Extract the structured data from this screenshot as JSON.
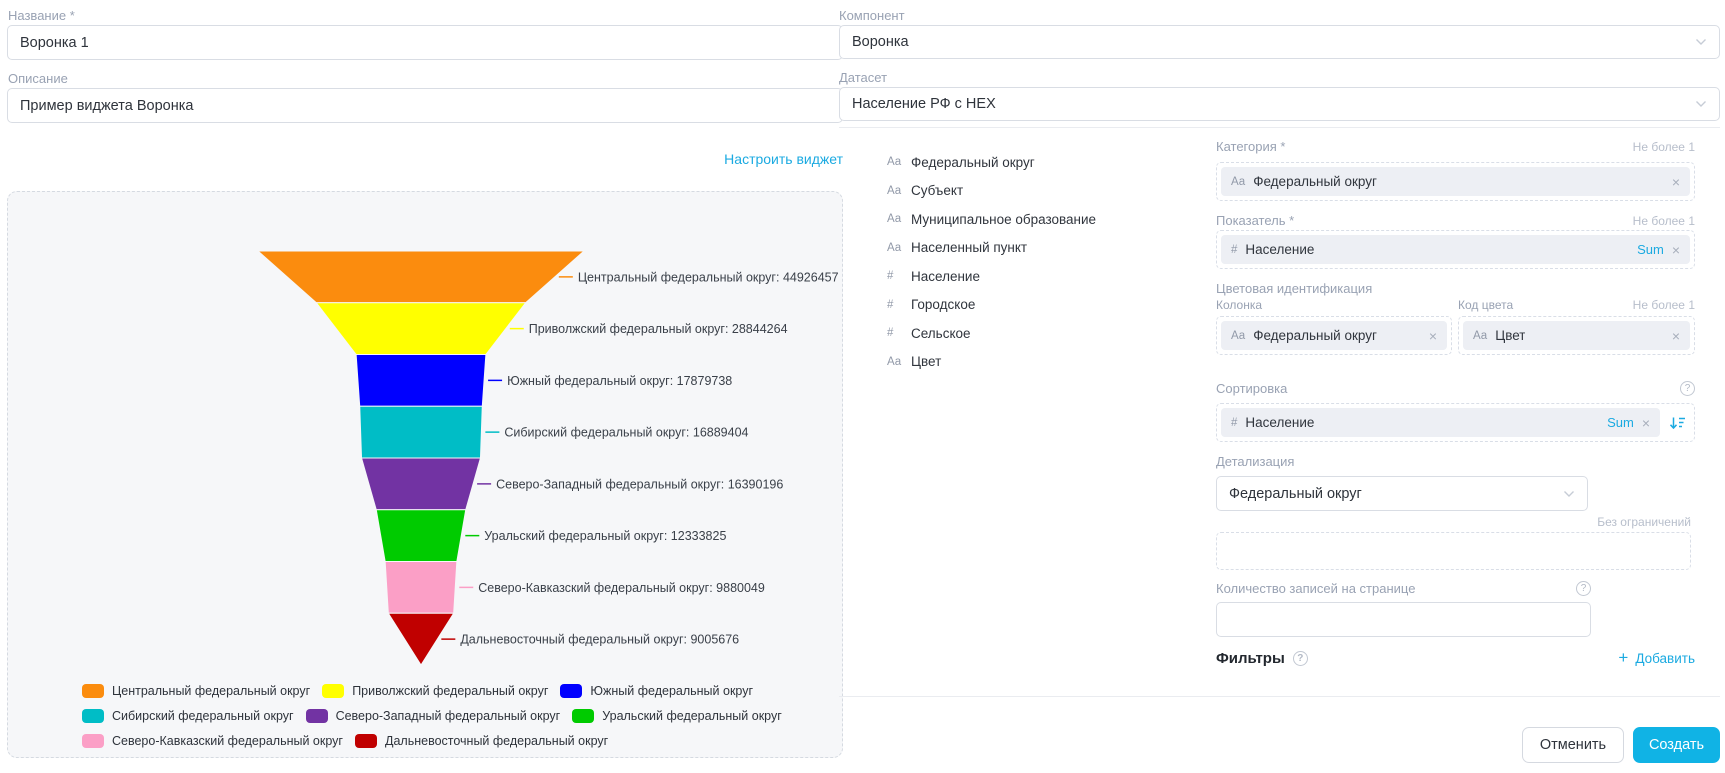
{
  "icons": {
    "close": "×",
    "help": "?",
    "plus": "+",
    "chevron_down": "chevron-down",
    "sort_desc": "sort-descending"
  },
  "accent_color": "#1baae1",
  "left": {
    "name_label": "Название *",
    "name_value": "Воронка 1",
    "description_label": "Описание",
    "description_value": "Пример виджета Воронка",
    "configure_link": "Настроить виджет"
  },
  "right": {
    "component_label": "Компонент",
    "component_value": "Воронка",
    "dataset_label": "Датасет",
    "dataset_value": "Население РФ с HEX",
    "fields": [
      {
        "type": "Аа",
        "name": "Федеральный округ"
      },
      {
        "type": "Аа",
        "name": "Субъект"
      },
      {
        "type": "Аа",
        "name": "Муниципальное образование"
      },
      {
        "type": "Аа",
        "name": "Населенный пункт"
      },
      {
        "type": "#",
        "name": "Население"
      },
      {
        "type": "#",
        "name": "Городское"
      },
      {
        "type": "#",
        "name": "Сельское"
      },
      {
        "type": "Аа",
        "name": "Цвет"
      }
    ],
    "config": {
      "category": {
        "label": "Категория *",
        "limit": "Не более 1",
        "chip": {
          "type": "Аа",
          "name": "Федеральный округ"
        }
      },
      "measure": {
        "label": "Показатель *",
        "limit": "Не более 1",
        "chip": {
          "type": "#",
          "name": "Население",
          "agg": "Sum"
        }
      },
      "color": {
        "label": "Цветовая идентификация",
        "column_label": "Колонка",
        "code_label": "Код цвета",
        "limit": "Не более 1",
        "column_chip": {
          "type": "Аа",
          "name": "Федеральный округ"
        },
        "code_chip": {
          "type": "Аа",
          "name": "Цвет"
        }
      },
      "sort": {
        "label": "Сортировка",
        "chip": {
          "type": "#",
          "name": "Население",
          "agg": "Sum"
        }
      },
      "detail": {
        "label": "Детализация",
        "value": "Федеральный округ"
      },
      "no_limit_label": "Без ограничений",
      "page_size_label": "Количество записей на странице",
      "page_size_value": "",
      "filters_label": "Фильтры",
      "add_label": "Добавить"
    },
    "cancel_button": "Отменить",
    "create_button": "Создать"
  },
  "chart_data": {
    "type": "funnel",
    "title": "",
    "label_format": "{name}: {value}",
    "legend_position": "bottom",
    "legend_rows": [
      3,
      3,
      2
    ],
    "series": [
      {
        "name": "Центральный федеральный округ",
        "value": 44926457,
        "color": "#fb8c0e"
      },
      {
        "name": "Приволжский федеральный округ",
        "value": 28844264,
        "color": "#ffff00"
      },
      {
        "name": "Южный федеральный округ",
        "value": 17879738,
        "color": "#0000ff"
      },
      {
        "name": "Сибирский федеральный округ",
        "value": 16889404,
        "color": "#00bdc6"
      },
      {
        "name": "Северо-Западный федеральный округ",
        "value": 16390196,
        "color": "#7233a3"
      },
      {
        "name": "Уральский федеральный округ",
        "value": 12333825,
        "color": "#00cb00"
      },
      {
        "name": "Северо-Кавказский федеральный округ",
        "value": 9880049,
        "color": "#fb9fc6"
      },
      {
        "name": "Дальневосточный федеральный округ",
        "value": 9005676,
        "color": "#c00000"
      }
    ]
  }
}
